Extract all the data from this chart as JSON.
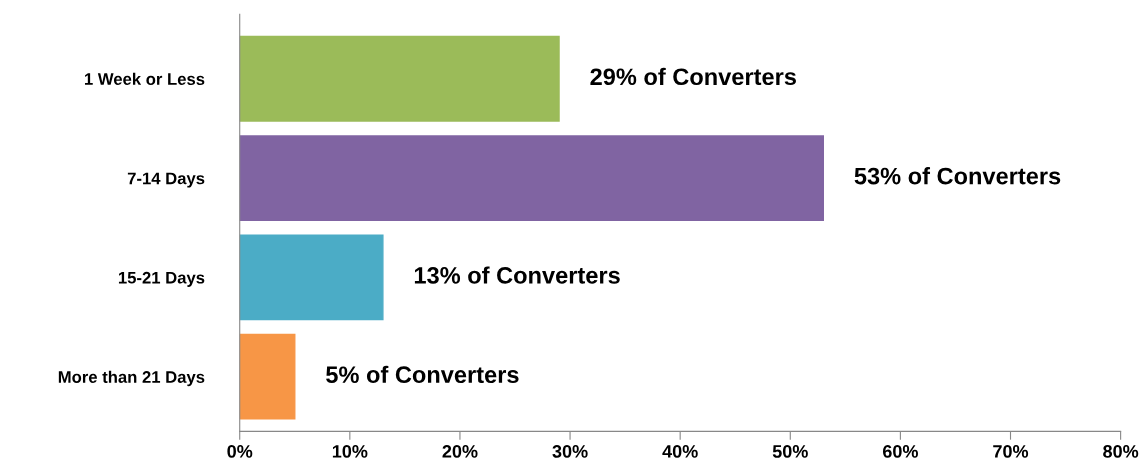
{
  "chart_data": {
    "type": "bar",
    "orientation": "horizontal",
    "categories": [
      "1 Week or Less",
      "7-14 Days",
      "15-21 Days",
      "More than 21 Days"
    ],
    "values": [
      29,
      53,
      13,
      5
    ],
    "colors": [
      "#9bbb59",
      "#8064a2",
      "#4bacc6",
      "#f79646"
    ],
    "value_labels": [
      "29% of Converters",
      "53% of Converters",
      "13% of Converters",
      "5% of Converters"
    ],
    "xlim": [
      0,
      80
    ],
    "xticks": [
      {
        "value": 0,
        "label": "0%"
      },
      {
        "value": 10,
        "label": "10%"
      },
      {
        "value": 20,
        "label": "20%"
      },
      {
        "value": 30,
        "label": "30%"
      },
      {
        "value": 40,
        "label": "40%"
      },
      {
        "value": 50,
        "label": "50%"
      },
      {
        "value": 60,
        "label": "60%"
      },
      {
        "value": 70,
        "label": "70%"
      },
      {
        "value": 80,
        "label": "80%"
      }
    ],
    "grid": false,
    "legend": false
  }
}
